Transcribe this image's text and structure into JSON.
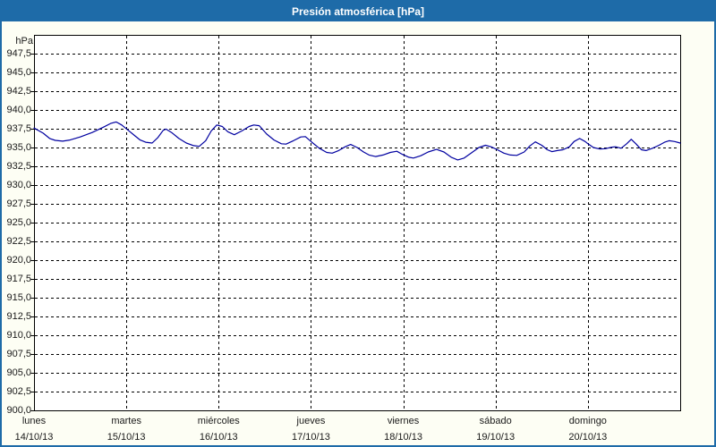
{
  "window": {
    "title": "Presión atmosférica [hPa]"
  },
  "colors": {
    "titlebar_bg": "#1E6BA8",
    "window_border": "#1E6BA8",
    "content_bg": "#FDFEF4",
    "plot_bg": "#FFFFFF",
    "plot_border": "#000000",
    "grid": "#000000",
    "line": "#0000A0",
    "text": "#1A1A1A",
    "title_text": "#FFFFFF"
  },
  "chart_data": {
    "type": "line",
    "title": "Presión atmosférica [hPa]",
    "unit_label": "hPa",
    "ylabel": "hPa",
    "ylim": [
      900,
      950
    ],
    "ytick_step": 2.5,
    "ytick_labels": [
      "947,5",
      "945,0",
      "942,5",
      "940,0",
      "937,5",
      "935,0",
      "932,5",
      "930,0",
      "927,5",
      "925,0",
      "922,5",
      "920,0",
      "917,5",
      "915,0",
      "912,5",
      "910,0",
      "907,5",
      "905,0",
      "902,5",
      "900,0"
    ],
    "x_range_days": [
      0,
      7
    ],
    "x_days": [
      {
        "name": "lunes",
        "date": "14/10/13"
      },
      {
        "name": "martes",
        "date": "15/10/13"
      },
      {
        "name": "miércoles",
        "date": "16/10/13"
      },
      {
        "name": "jueves",
        "date": "17/10/13"
      },
      {
        "name": "viernes",
        "date": "18/10/13"
      },
      {
        "name": "sábado",
        "date": "19/10/13"
      },
      {
        "name": "domingo",
        "date": "20/10/13"
      }
    ],
    "grid": "dashed",
    "legend": "none",
    "series": [
      {
        "name": "Presión atmosférica",
        "color": "#0000A0",
        "points": [
          [
            0.0,
            937.6
          ],
          [
            0.1,
            936.9
          ],
          [
            0.17,
            936.2
          ],
          [
            0.23,
            935.95
          ],
          [
            0.31,
            935.85
          ],
          [
            0.39,
            936.0
          ],
          [
            0.5,
            936.4
          ],
          [
            0.63,
            937.0
          ],
          [
            0.75,
            937.7
          ],
          [
            0.83,
            938.2
          ],
          [
            0.89,
            938.4
          ],
          [
            0.95,
            938.0
          ],
          [
            1.02,
            937.3
          ],
          [
            1.09,
            936.6
          ],
          [
            1.15,
            936.0
          ],
          [
            1.21,
            935.7
          ],
          [
            1.28,
            935.6
          ],
          [
            1.34,
            936.3
          ],
          [
            1.4,
            937.3
          ],
          [
            1.43,
            937.45
          ],
          [
            1.49,
            937.0
          ],
          [
            1.57,
            936.2
          ],
          [
            1.65,
            935.6
          ],
          [
            1.73,
            935.25
          ],
          [
            1.79,
            935.15
          ],
          [
            1.86,
            935.9
          ],
          [
            1.92,
            937.2
          ],
          [
            1.98,
            938.0
          ],
          [
            2.04,
            937.8
          ],
          [
            2.1,
            937.1
          ],
          [
            2.17,
            936.7
          ],
          [
            2.25,
            937.2
          ],
          [
            2.33,
            937.8
          ],
          [
            2.38,
            938.0
          ],
          [
            2.44,
            937.9
          ],
          [
            2.52,
            936.8
          ],
          [
            2.6,
            936.0
          ],
          [
            2.68,
            935.5
          ],
          [
            2.73,
            935.45
          ],
          [
            2.81,
            935.9
          ],
          [
            2.89,
            936.4
          ],
          [
            2.94,
            936.45
          ],
          [
            3.01,
            935.7
          ],
          [
            3.09,
            934.9
          ],
          [
            3.17,
            934.35
          ],
          [
            3.23,
            934.25
          ],
          [
            3.3,
            934.6
          ],
          [
            3.37,
            935.1
          ],
          [
            3.43,
            935.4
          ],
          [
            3.5,
            935.0
          ],
          [
            3.57,
            934.4
          ],
          [
            3.63,
            934.0
          ],
          [
            3.7,
            933.8
          ],
          [
            3.78,
            934.0
          ],
          [
            3.86,
            934.35
          ],
          [
            3.93,
            934.5
          ],
          [
            3.99,
            934.1
          ],
          [
            4.06,
            933.7
          ],
          [
            4.11,
            933.6
          ],
          [
            4.19,
            933.9
          ],
          [
            4.27,
            934.4
          ],
          [
            4.36,
            934.75
          ],
          [
            4.44,
            934.4
          ],
          [
            4.52,
            933.7
          ],
          [
            4.59,
            933.35
          ],
          [
            4.66,
            933.6
          ],
          [
            4.74,
            934.3
          ],
          [
            4.82,
            935.0
          ],
          [
            4.89,
            935.3
          ],
          [
            4.95,
            935.1
          ],
          [
            5.02,
            934.7
          ],
          [
            5.09,
            934.25
          ],
          [
            5.16,
            934.0
          ],
          [
            5.23,
            933.95
          ],
          [
            5.31,
            934.4
          ],
          [
            5.37,
            935.2
          ],
          [
            5.43,
            935.75
          ],
          [
            5.5,
            935.3
          ],
          [
            5.56,
            934.7
          ],
          [
            5.61,
            934.45
          ],
          [
            5.67,
            934.6
          ],
          [
            5.73,
            934.7
          ],
          [
            5.8,
            935.1
          ],
          [
            5.85,
            935.8
          ],
          [
            5.91,
            936.2
          ],
          [
            5.97,
            935.8
          ],
          [
            6.0,
            935.5
          ],
          [
            6.06,
            935.0
          ],
          [
            6.13,
            934.8
          ],
          [
            6.19,
            934.85
          ],
          [
            6.26,
            935.05
          ],
          [
            6.3,
            935.1
          ],
          [
            6.36,
            934.9
          ],
          [
            6.42,
            935.5
          ],
          [
            6.47,
            936.1
          ],
          [
            6.52,
            935.5
          ],
          [
            6.58,
            934.7
          ],
          [
            6.63,
            934.6
          ],
          [
            6.7,
            934.9
          ],
          [
            6.77,
            935.3
          ],
          [
            6.83,
            935.7
          ],
          [
            6.88,
            935.9
          ],
          [
            6.94,
            935.8
          ],
          [
            7.0,
            935.6
          ]
        ]
      }
    ]
  }
}
